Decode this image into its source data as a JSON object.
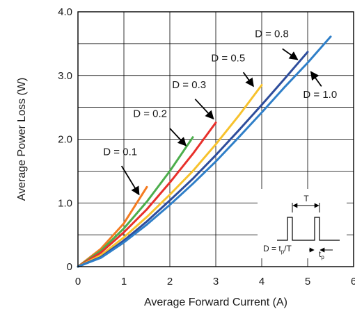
{
  "chart_data": {
    "type": "line",
    "title": "",
    "xlabel": "Average Forward Current (A)",
    "ylabel": "Average Power Loss (W)",
    "xlim": [
      0,
      6
    ],
    "ylim": [
      0,
      4
    ],
    "x_ticks": [
      "0",
      "1",
      "2",
      "3",
      "4",
      "5",
      "6"
    ],
    "y_ticks": [
      "0",
      "1.0",
      "2.0",
      "3.0",
      "4.0"
    ],
    "grid": true,
    "series": [
      {
        "name": "D = 0.1",
        "color": "#f47b20",
        "points": [
          [
            0,
            0
          ],
          [
            0.5,
            0.28
          ],
          [
            1,
            0.68
          ],
          [
            1.5,
            1.25
          ]
        ]
      },
      {
        "name": "D = 0.2",
        "color": "#4cae4c",
        "points": [
          [
            0,
            0
          ],
          [
            0.5,
            0.25
          ],
          [
            1,
            0.6
          ],
          [
            1.5,
            1.02
          ],
          [
            2,
            1.5
          ],
          [
            2.5,
            2.03
          ]
        ]
      },
      {
        "name": "D = 0.3",
        "color": "#e8302b",
        "points": [
          [
            0,
            0
          ],
          [
            0.5,
            0.22
          ],
          [
            1,
            0.54
          ],
          [
            1.5,
            0.9
          ],
          [
            2,
            1.32
          ],
          [
            2.5,
            1.77
          ],
          [
            3,
            2.26
          ]
        ]
      },
      {
        "name": "D = 0.5",
        "color": "#f7c22d",
        "points": [
          [
            0,
            0
          ],
          [
            0.5,
            0.18
          ],
          [
            1,
            0.46
          ],
          [
            1.5,
            0.78
          ],
          [
            2,
            1.13
          ],
          [
            2.5,
            1.5
          ],
          [
            3,
            1.92
          ],
          [
            3.5,
            2.37
          ],
          [
            4,
            2.85
          ]
        ]
      },
      {
        "name": "D = 0.8",
        "color": "#2e4d9c",
        "points": [
          [
            0,
            0
          ],
          [
            0.5,
            0.15
          ],
          [
            1,
            0.41
          ],
          [
            1.5,
            0.71
          ],
          [
            2,
            1.04
          ],
          [
            2.5,
            1.38
          ],
          [
            3,
            1.75
          ],
          [
            3.5,
            2.14
          ],
          [
            4,
            2.54
          ],
          [
            4.5,
            2.95
          ],
          [
            5,
            3.37
          ]
        ]
      },
      {
        "name": "D = 1.0",
        "color": "#2f7fc8",
        "points": [
          [
            0,
            0
          ],
          [
            0.5,
            0.14
          ],
          [
            1,
            0.38
          ],
          [
            1.5,
            0.66
          ],
          [
            2,
            0.97
          ],
          [
            2.5,
            1.3
          ],
          [
            3,
            1.65
          ],
          [
            3.5,
            2.03
          ],
          [
            4,
            2.42
          ],
          [
            4.5,
            2.82
          ],
          [
            5,
            3.2
          ],
          [
            5.5,
            3.61
          ]
        ]
      }
    ],
    "annotations": {
      "duty_cycle_formula": "D = tp/T",
      "period_label": "T",
      "pulse_width_label": "tp"
    }
  }
}
